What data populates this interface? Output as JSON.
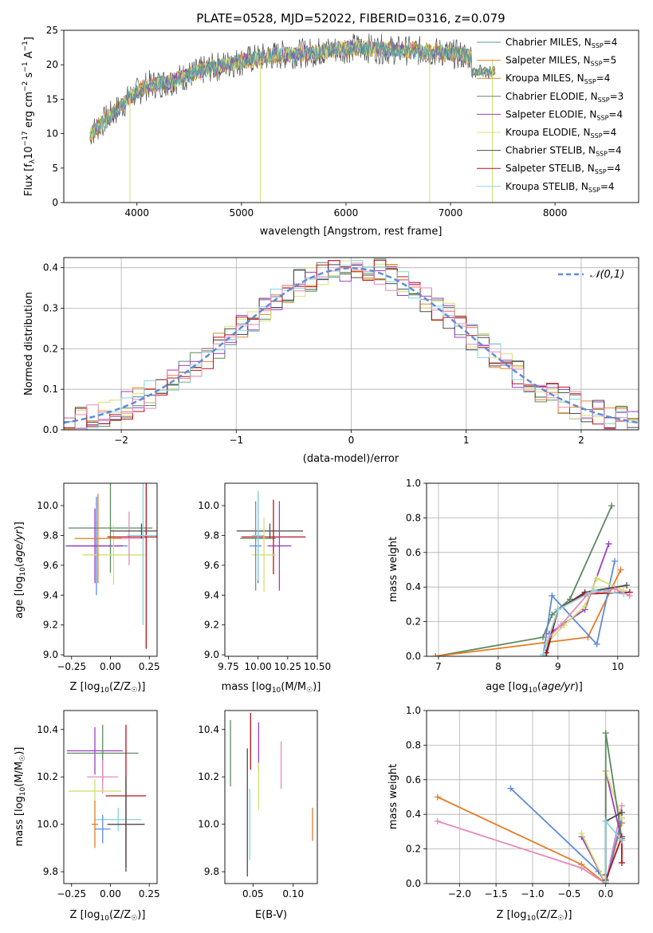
{
  "figure": {
    "title": "PLATE=0528, MJD=52022, FIBERID=0316, z=0.079"
  },
  "colors": {
    "Chabrier MILES": "#5b9aa6",
    "Salpeter MILES": "#e8832a",
    "Kroupa MILES": "#d6882a",
    "Chabrier ELODIE": "#5c8a60",
    "Salpeter ELODIE": "#9b3fc0",
    "Kroupa ELODIE": "#d4e070",
    "Chabrier STELIB": "#4a4a4a",
    "Salpeter STELIB": "#b5121b",
    "Kroupa STELIB": "#86d3de",
    "blue": "#5f8bd8",
    "orange": "#e57b22",
    "pink": "#e58ab9",
    "gauss": "#5f8bd8"
  },
  "chart_data": [
    {
      "id": "spectrum",
      "type": "line",
      "title": "PLATE=0528, MJD=52022, FIBERID=0316, z=0.079",
      "xlabel": "wavelength [Angstrom, rest frame]",
      "ylabel": "Flux [f_λ 10^-17 erg cm^-2 s^-1 A^-1]",
      "xlim": [
        3300,
        8800
      ],
      "ylim": [
        0,
        25
      ],
      "xticks": [
        "4000",
        "5000",
        "6000",
        "7000",
        "8000"
      ],
      "yticks": [
        "0",
        "5",
        "10",
        "15",
        "20",
        "25"
      ],
      "grid": false,
      "legend_position": "right",
      "legend": [
        {
          "name": "Chabrier MILES",
          "nssp": "4"
        },
        {
          "name": "Salpeter MILES",
          "nssp": "5"
        },
        {
          "name": "Kroupa MILES",
          "nssp": "4"
        },
        {
          "name": "Chabrier ELODIE",
          "nssp": "3"
        },
        {
          "name": "Salpeter ELODIE",
          "nssp": "4"
        },
        {
          "name": "Kroupa ELODIE",
          "nssp": "4"
        },
        {
          "name": "Chabrier STELIB",
          "nssp": "4"
        },
        {
          "name": "Salpeter STELIB",
          "nssp": "4"
        },
        {
          "name": "Kroupa STELIB",
          "nssp": "4"
        }
      ],
      "continuum": {
        "x": [
          3550,
          3700,
          3850,
          3950,
          4100,
          4300,
          4500,
          4700,
          4900,
          5100,
          5300,
          5500,
          5700,
          5900,
          6100,
          6300,
          6500,
          6700,
          6900,
          7100,
          7300,
          7400
        ],
        "y": [
          10,
          12,
          14,
          15.5,
          17,
          17.5,
          18.5,
          19.5,
          20.2,
          20.8,
          21.3,
          21.6,
          21.8,
          22.2,
          22.5,
          22.3,
          22.1,
          22.0,
          21.8,
          21.4,
          21.0,
          20.8
        ]
      },
      "dips": [
        {
          "x": 3933,
          "y": 0
        },
        {
          "x": 5180,
          "y": 0
        },
        {
          "x": 6800,
          "y": 0
        },
        {
          "x": 7400,
          "y": 0
        }
      ]
    },
    {
      "id": "residuals",
      "type": "histogram",
      "xlabel": "(data-model)/error",
      "ylabel": "Normed distribution",
      "xlim": [
        -2.5,
        2.5
      ],
      "ylim": [
        0,
        0.425
      ],
      "xticks": [
        "-2",
        "-1",
        "0",
        "1",
        "2"
      ],
      "yticks": [
        "0.0",
        "0.1",
        "0.2",
        "0.3",
        "0.4"
      ],
      "grid": true,
      "legend_position": "top-right",
      "legend": [
        {
          "name": "𝒩(0,1)",
          "style": "dashed"
        }
      ],
      "bin_width": 0.1
    },
    {
      "id": "age_vs_Z",
      "type": "errorbar",
      "xlabel": "Z [log10(Z/Z☉)]",
      "ylabel": "age  [log10(age/yr)]",
      "xlim": [
        -0.3,
        0.3
      ],
      "ylim": [
        8.99,
        10.15
      ],
      "xticks": [
        "-0.25",
        "0.00",
        "0.25"
      ],
      "yticks": [
        "9.0",
        "9.2",
        "9.4",
        "9.6",
        "9.8",
        "10.0"
      ],
      "points": [
        {
          "series": "blue",
          "x": -0.09,
          "xerr": 0.2,
          "y": 9.73,
          "yerr": 0.33
        },
        {
          "series": "Chabrier ELODIE",
          "x": 0.0,
          "xerr": 0.27,
          "y": 9.85,
          "yerr": 0.3
        },
        {
          "series": "Salpeter ELODIE",
          "x": -0.1,
          "xerr": 0.18,
          "y": 9.73,
          "yerr": 0.25
        },
        {
          "series": "Kroupa ELODIE",
          "x": 0.02,
          "xerr": 0.2,
          "y": 9.67,
          "yerr": 0.2
        },
        {
          "series": "pink",
          "x": 0.12,
          "xerr": 0.1,
          "y": 9.78,
          "yerr": 0.18
        },
        {
          "series": "Chabrier STELIB",
          "x": 0.2,
          "xerr": 0.2,
          "y": 9.83,
          "yerr": 0.05
        },
        {
          "series": "Salpeter STELIB",
          "x": 0.23,
          "xerr": 0.25,
          "y": 9.79,
          "yerr": 0.75
        },
        {
          "series": "Kroupa STELIB",
          "x": 0.21,
          "xerr": 0.1,
          "y": 9.8,
          "yerr": 0.6
        },
        {
          "series": "orange",
          "x": -0.08,
          "xerr": 0.15,
          "y": 9.78,
          "yerr": 0.3
        }
      ]
    },
    {
      "id": "age_vs_mass",
      "type": "errorbar",
      "xlabel": "mass [log10(M/M☉)]",
      "ylabel": "",
      "xlim": [
        9.72,
        10.5
      ],
      "ylim": [
        8.99,
        10.15
      ],
      "xticks": [
        "9.75",
        "10.00",
        "10.25",
        "10.50"
      ],
      "yticks": [
        "9.0",
        "9.2",
        "9.4",
        "9.6",
        "9.8",
        "10.0"
      ],
      "points": [
        {
          "series": "Chabrier STELIB",
          "x": 10.1,
          "xerr": 0.28,
          "y": 9.83,
          "yerr": 0.05
        },
        {
          "series": "Chabrier ELODIE",
          "x": 10.0,
          "xerr": 0.15,
          "y": 9.78,
          "yerr": 0.3
        },
        {
          "series": "Salpeter STELIB",
          "x": 10.13,
          "xerr": 0.27,
          "y": 9.79,
          "yerr": 0.25
        },
        {
          "series": "Salpeter ELODIE",
          "x": 10.18,
          "xerr": 0.1,
          "y": 9.73,
          "yerr": 0.3
        },
        {
          "series": "Kroupa ELODIE",
          "x": 10.05,
          "xerr": 0.1,
          "y": 9.67,
          "yerr": 0.25
        },
        {
          "series": "blue",
          "x": 9.98,
          "xerr": 0.05,
          "y": 9.73,
          "yerr": 0.3
        },
        {
          "series": "Kroupa STELIB",
          "x": 10.0,
          "xerr": 0.05,
          "y": 9.8,
          "yerr": 0.3
        }
      ]
    },
    {
      "id": "mass_weight_vs_age",
      "type": "line",
      "xlabel": "age  [log10(age/yr)]",
      "ylabel": "mass weight",
      "xlim": [
        6.8,
        10.35
      ],
      "ylim": [
        0,
        1.0
      ],
      "xticks": [
        "7",
        "8",
        "9",
        "10"
      ],
      "yticks": [
        "0.0",
        "0.2",
        "0.4",
        "0.6",
        "0.8",
        "1.0"
      ],
      "grid": true,
      "series": [
        {
          "name": "Chabrier ELODIE",
          "x": [
            6.95,
            8.75,
            8.9,
            9.2,
            9.9
          ],
          "y": [
            0.0,
            0.11,
            0.24,
            0.33,
            0.87
          ]
        },
        {
          "name": "orange",
          "x": [
            6.95,
            8.8,
            9.5,
            10.05
          ],
          "y": [
            0.0,
            0.08,
            0.11,
            0.5
          ]
        },
        {
          "name": "blue",
          "x": [
            8.75,
            8.9,
            9.65,
            9.95
          ],
          "y": [
            0.0,
            0.35,
            0.07,
            0.55
          ]
        },
        {
          "name": "Salpeter ELODIE",
          "x": [
            8.85,
            9.45,
            9.85
          ],
          "y": [
            0.13,
            0.27,
            0.65
          ]
        },
        {
          "name": "Kroupa ELODIE",
          "x": [
            8.8,
            9.1,
            9.45,
            9.65,
            10.1
          ],
          "y": [
            0.07,
            0.18,
            0.29,
            0.45,
            0.38
          ]
        },
        {
          "name": "Chabrier STELIB",
          "x": [
            8.8,
            9.0,
            9.45,
            10.15
          ],
          "y": [
            0.0,
            0.27,
            0.37,
            0.41
          ]
        },
        {
          "name": "Salpeter STELIB",
          "x": [
            8.8,
            9.0,
            9.45,
            10.2
          ],
          "y": [
            0.02,
            0.27,
            0.36,
            0.37
          ]
        },
        {
          "name": "pink",
          "x": [
            8.85,
            9.05,
            9.5,
            9.95,
            10.2
          ],
          "y": [
            0.11,
            0.18,
            0.36,
            0.39,
            0.35
          ]
        },
        {
          "name": "Kroupa STELIB",
          "x": [
            8.75,
            9.0,
            9.6,
            10.1
          ],
          "y": [
            0.01,
            0.27,
            0.38,
            0.36
          ]
        }
      ]
    },
    {
      "id": "mass_vs_Z",
      "type": "errorbar",
      "xlabel": "Z [log10(Z/Z☉)]",
      "ylabel": "mass [log10(M/M☉)]",
      "xlim": [
        -0.3,
        0.3
      ],
      "ylim": [
        9.75,
        10.48
      ],
      "xticks": [
        "-0.25",
        "0.00",
        "0.25"
      ],
      "yticks": [
        "9.8",
        "10.0",
        "10.2",
        "10.4"
      ],
      "points": [
        {
          "series": "Salpeter ELODIE",
          "x": -0.1,
          "xerr": 0.18,
          "y": 10.31,
          "yerr": 0.1
        },
        {
          "series": "Chabrier ELODIE",
          "x": -0.05,
          "xerr": 0.23,
          "y": 10.3,
          "yerr": 0.12
        },
        {
          "series": "pink",
          "x": -0.05,
          "xerr": 0.1,
          "y": 10.2,
          "yerr": 0.07
        },
        {
          "series": "Kroupa ELODIE",
          "x": -0.1,
          "xerr": 0.17,
          "y": 10.14,
          "yerr": 0.05
        },
        {
          "series": "Salpeter STELIB",
          "x": 0.1,
          "xerr": 0.13,
          "y": 10.12,
          "yerr": 0.3
        },
        {
          "series": "Kroupa STELIB",
          "x": 0.05,
          "xerr": 0.15,
          "y": 10.02,
          "yerr": 0.05
        },
        {
          "series": "Chabrier STELIB",
          "x": 0.1,
          "xerr": 0.12,
          "y": 10.0,
          "yerr": 0.2
        },
        {
          "series": "blue",
          "x": -0.05,
          "xerr": 0.05,
          "y": 9.98,
          "yerr": 0.06
        },
        {
          "series": "orange",
          "x": -0.1,
          "xerr": 0.02,
          "y": 10.0,
          "yerr": 0.1
        }
      ]
    },
    {
      "id": "mass_vs_EBV",
      "type": "errorbar",
      "xlabel": "E(B-V)",
      "ylabel": "",
      "xlim": [
        0.015,
        0.13
      ],
      "ylim": [
        9.75,
        10.48
      ],
      "xticks": [
        "0.05",
        "0.10"
      ],
      "yticks": [
        "9.8",
        "10.0",
        "10.2",
        "10.4"
      ],
      "points": [
        {
          "series": "Chabrier ELODIE",
          "x": 0.022,
          "y": 10.3,
          "yerr": 0.14
        },
        {
          "series": "Salpeter STELIB",
          "x": 0.047,
          "y": 10.35,
          "yerr": 0.12
        },
        {
          "series": "Salpeter ELODIE",
          "x": 0.057,
          "y": 10.33,
          "yerr": 0.1
        },
        {
          "series": "pink",
          "x": 0.085,
          "y": 10.25,
          "yerr": 0.1
        },
        {
          "series": "Chabrier STELIB",
          "x": 0.043,
          "y": 10.05,
          "yerr": 0.27
        },
        {
          "series": "Kroupa ELODIE",
          "x": 0.057,
          "y": 10.16,
          "yerr": 0.1
        },
        {
          "series": "Kroupa STELIB",
          "x": 0.046,
          "y": 10.0,
          "yerr": 0.15
        },
        {
          "series": "orange",
          "x": 0.124,
          "y": 10.0,
          "yerr": 0.07
        }
      ]
    },
    {
      "id": "mass_weight_vs_Z",
      "type": "line",
      "xlabel": "Z [log10(Z/Z☉)]",
      "ylabel": "mass weight",
      "xlim": [
        -2.45,
        0.45
      ],
      "ylim": [
        0,
        1.0
      ],
      "xticks": [
        "-2.0",
        "-1.5",
        "-1.0",
        "-0.5",
        "0.0"
      ],
      "yticks": [
        "0.0",
        "0.2",
        "0.4",
        "0.6",
        "0.8",
        "1.0"
      ],
      "grid": true,
      "series": [
        {
          "name": "orange",
          "x": [
            -2.3,
            -0.33,
            0.0,
            0.22
          ],
          "y": [
            0.5,
            0.11,
            0.0,
            0.35
          ]
        },
        {
          "name": "pink",
          "x": [
            -2.3,
            -0.33,
            0.0,
            0.22
          ],
          "y": [
            0.36,
            0.09,
            0.0,
            0.45
          ]
        },
        {
          "name": "blue",
          "x": [
            -1.3,
            -0.1,
            0.0,
            0.22
          ],
          "y": [
            0.55,
            0.07,
            0.0,
            0.38
          ]
        },
        {
          "name": "Salpeter ELODIE",
          "x": [
            -0.33,
            0.0,
            0.0,
            0.22
          ],
          "y": [
            0.27,
            0.0,
            0.65,
            0.25
          ]
        },
        {
          "name": "Kroupa ELODIE",
          "x": [
            -0.33,
            0.0,
            0.0,
            0.22
          ],
          "y": [
            0.29,
            0.0,
            0.65,
            0.38
          ]
        },
        {
          "name": "Chabrier ELODIE",
          "x": [
            0.0,
            0.0,
            0.22
          ],
          "y": [
            0.0,
            0.87,
            0.26
          ]
        },
        {
          "name": "Chabrier STELIB",
          "x": [
            0.0,
            0.0,
            0.22
          ],
          "y": [
            0.05,
            0.36,
            0.41
          ]
        },
        {
          "name": "Salpeter STELIB",
          "x": [
            0.0,
            0.22,
            0.22
          ],
          "y": [
            0.02,
            0.27,
            0.12
          ]
        },
        {
          "name": "Kroupa STELIB",
          "x": [
            0.0,
            0.0,
            0.22
          ],
          "y": [
            0.01,
            0.36,
            0.25
          ]
        }
      ]
    }
  ]
}
